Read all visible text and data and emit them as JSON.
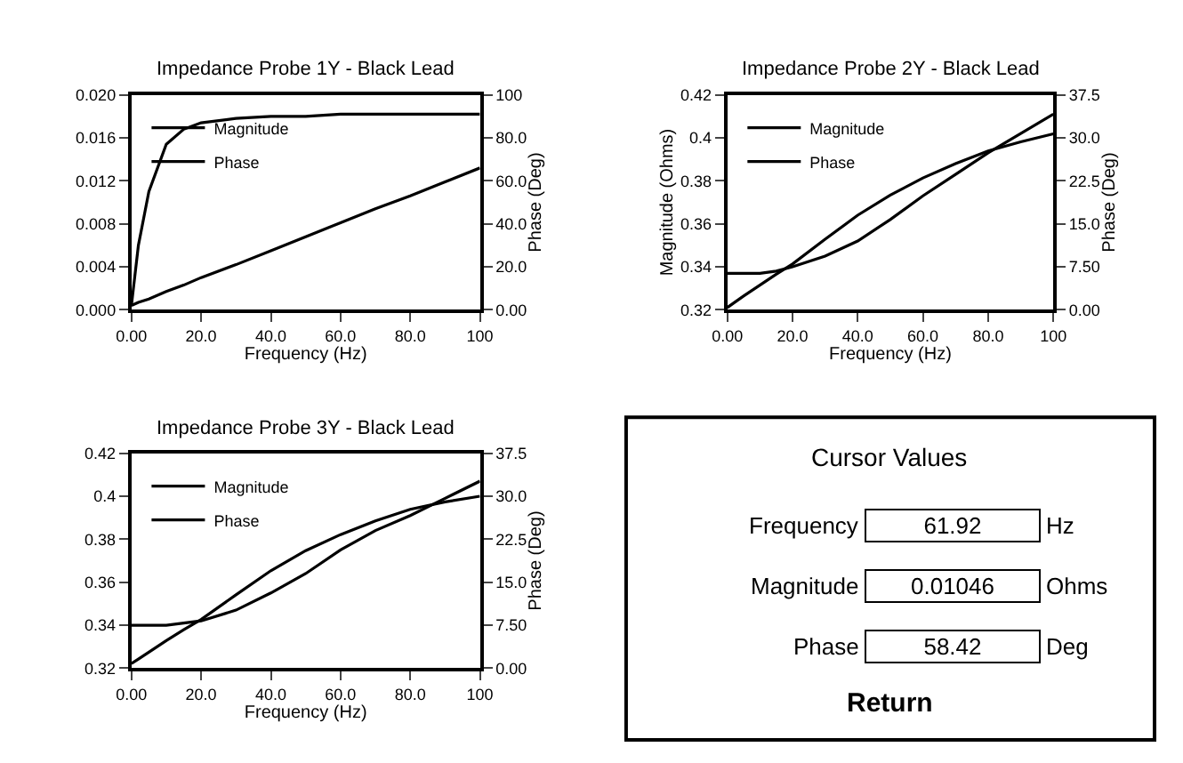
{
  "chart_data": [
    {
      "type": "line",
      "title": "Impedance Probe 1Y - Black Lead",
      "xlabel": "Frequency (Hz)",
      "y2label": "Phase (Deg)",
      "legend": "top left",
      "marker": "none",
      "x": [
        0,
        2,
        5,
        10,
        15,
        20,
        30,
        40,
        50,
        60,
        70,
        80,
        90,
        100
      ],
      "series": [
        {
          "name": "Magnitude",
          "color": "#000000",
          "axis": "y",
          "values": [
            0.0004,
            0.0007,
            0.001,
            0.0017,
            0.0023,
            0.003,
            0.0042,
            0.0055,
            0.0068,
            0.0081,
            0.0094,
            0.0106,
            0.0119,
            0.0132
          ]
        },
        {
          "name": "Phase",
          "color": "#000000",
          "axis": "y2",
          "values": [
            2,
            30,
            55,
            77,
            84,
            87,
            89,
            90,
            90,
            91,
            91,
            91,
            91,
            91
          ]
        }
      ],
      "xlim": [
        0,
        100
      ],
      "xticks": [
        {
          "value": 0,
          "label": "0.00"
        },
        {
          "value": 20,
          "label": "20.0"
        },
        {
          "value": 40,
          "label": "40.0"
        },
        {
          "value": 60,
          "label": "60.0"
        },
        {
          "value": 80,
          "label": "80.0"
        },
        {
          "value": 100,
          "label": "100"
        }
      ],
      "ylim": [
        0,
        0.02
      ],
      "yticks": [
        {
          "value": 0,
          "label": "0.000"
        },
        {
          "value": 0.004,
          "label": "0.004"
        },
        {
          "value": 0.008,
          "label": "0.008"
        },
        {
          "value": 0.012,
          "label": "0.012"
        },
        {
          "value": 0.016,
          "label": "0.016"
        },
        {
          "value": 0.02,
          "label": "0.020"
        }
      ],
      "y2lim": [
        0,
        100
      ],
      "y2ticks": [
        {
          "value": 0,
          "label": "0.00"
        },
        {
          "value": 20,
          "label": "20.0"
        },
        {
          "value": 40,
          "label": "40.0"
        },
        {
          "value": 60,
          "label": "60.0"
        },
        {
          "value": 80,
          "label": "80.0"
        },
        {
          "value": 100,
          "label": "100"
        }
      ]
    },
    {
      "type": "line",
      "title": "Impedance Probe 2Y - Black Lead",
      "xlabel": "Frequency (Hz)",
      "ylabel": "Magnitude (Ohms)",
      "y2label": "Phase (Deg)",
      "legend": "top left",
      "marker": "none",
      "x": [
        0,
        2,
        5,
        10,
        15,
        20,
        30,
        40,
        50,
        60,
        70,
        80,
        90,
        100
      ],
      "series": [
        {
          "name": "Magnitude",
          "color": "#000000",
          "axis": "y",
          "values": [
            0.337,
            0.337,
            0.337,
            0.337,
            0.338,
            0.34,
            0.345,
            0.352,
            0.362,
            0.373,
            0.383,
            0.393,
            0.402,
            0.411
          ]
        },
        {
          "name": "Phase",
          "color": "#000000",
          "axis": "y2",
          "values": [
            0.4,
            1.2,
            2.4,
            4.3,
            6.2,
            8.0,
            12.3,
            16.5,
            20,
            23,
            25.5,
            27.7,
            29.3,
            30.7
          ]
        }
      ],
      "xlim": [
        0,
        100
      ],
      "xticks": [
        {
          "value": 0,
          "label": "0.00"
        },
        {
          "value": 20,
          "label": "20.0"
        },
        {
          "value": 40,
          "label": "40.0"
        },
        {
          "value": 60,
          "label": "60.0"
        },
        {
          "value": 80,
          "label": "80.0"
        },
        {
          "value": 100,
          "label": "100"
        }
      ],
      "ylim": [
        0.32,
        0.42
      ],
      "yticks": [
        0.32,
        0.34,
        0.36,
        0.38,
        0.4,
        0.42
      ],
      "y2lim": [
        0,
        37.5
      ],
      "y2ticks": [
        {
          "value": 0,
          "label": "0.00"
        },
        {
          "value": 7.5,
          "label": "7.50"
        },
        {
          "value": 15,
          "label": "15.0"
        },
        {
          "value": 22.5,
          "label": "22.5"
        },
        {
          "value": 30,
          "label": "30.0"
        },
        {
          "value": 37.5,
          "label": "37.5"
        }
      ]
    },
    {
      "type": "line",
      "title": "Impedance Probe 3Y - Black Lead",
      "xlabel": "Frequency (Hz)",
      "y2label": "Phase (Deg)",
      "legend": "top left",
      "marker": "none",
      "x": [
        0,
        2,
        5,
        10,
        15,
        20,
        30,
        40,
        50,
        60,
        70,
        80,
        90,
        100
      ],
      "series": [
        {
          "name": "Magnitude",
          "color": "#000000",
          "axis": "y",
          "values": [
            0.34,
            0.34,
            0.34,
            0.34,
            0.341,
            0.342,
            0.347,
            0.355,
            0.364,
            0.375,
            0.384,
            0.391,
            0.399,
            0.407
          ]
        },
        {
          "name": "Phase",
          "color": "#000000",
          "axis": "y2",
          "values": [
            0.8,
            1.6,
            2.8,
            4.8,
            6.7,
            8.5,
            12.8,
            17,
            20.5,
            23.3,
            25.7,
            27.7,
            29,
            30
          ]
        }
      ],
      "xlim": [
        0,
        100
      ],
      "xticks": [
        {
          "value": 0,
          "label": "0.00"
        },
        {
          "value": 20,
          "label": "20.0"
        },
        {
          "value": 40,
          "label": "40.0"
        },
        {
          "value": 60,
          "label": "60.0"
        },
        {
          "value": 80,
          "label": "80.0"
        },
        {
          "value": 100,
          "label": "100"
        }
      ],
      "ylim": [
        0.32,
        0.42
      ],
      "yticks": [
        0.32,
        0.34,
        0.36,
        0.38,
        0.4,
        0.42
      ],
      "y2lim": [
        0,
        37.5
      ],
      "y2ticks": [
        {
          "value": 0,
          "label": "0.00"
        },
        {
          "value": 7.5,
          "label": "7.50"
        },
        {
          "value": 15,
          "label": "15.0"
        },
        {
          "value": 22.5,
          "label": "22.5"
        },
        {
          "value": 30,
          "label": "30.0"
        },
        {
          "value": 37.5,
          "label": "37.5"
        }
      ]
    },
    {
      "type": "other",
      "title": "Cursor Values",
      "annotations": [
        "Frequency",
        "61.92",
        "Hz",
        "Magnitude",
        "0.01046",
        "Ohms",
        "Phase",
        "58.42",
        "Deg",
        "Return"
      ]
    }
  ]
}
